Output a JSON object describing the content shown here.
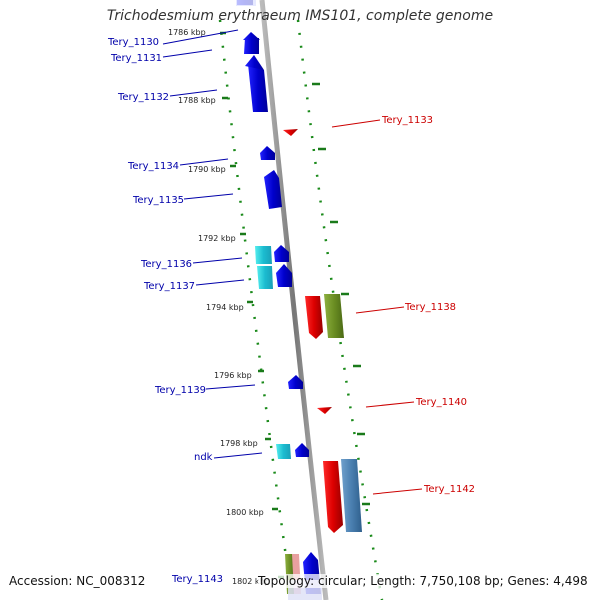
{
  "title": "Trichodesmium erythraeum IMS101, complete genome",
  "accession": "Accession: NC_008312",
  "summary": "Topology: circular; Length: 7,750,108 bp; Genes: 4,498",
  "colors": {
    "forward_strand": "#0000dd",
    "reverse_strand": "#dd0000",
    "backbone": "#888888",
    "tick": "#1a7a1a",
    "cyan_feature": "#22cccc",
    "olive_feature": "#6b8e23",
    "steelblue_feature": "#4a7fb0",
    "pink_feature": "#e8a0a0"
  },
  "scale_labels": [
    "1786 kbp",
    "1788 kbp",
    "1790 kbp",
    "1792 kbp",
    "1794 kbp",
    "1796 kbp",
    "1798 kbp",
    "1800 kbp",
    "1802 kbp"
  ],
  "forward_genes": [
    "Tery_1130",
    "Tery_1131",
    "Tery_1132",
    "Tery_1134",
    "Tery_1135",
    "Tery_1136",
    "Tery_1137",
    "Tery_1139",
    "ndk",
    "Tery_1143"
  ],
  "reverse_genes": [
    "Tery_1133",
    "Tery_1138",
    "Tery_1140",
    "Tery_1142"
  ]
}
